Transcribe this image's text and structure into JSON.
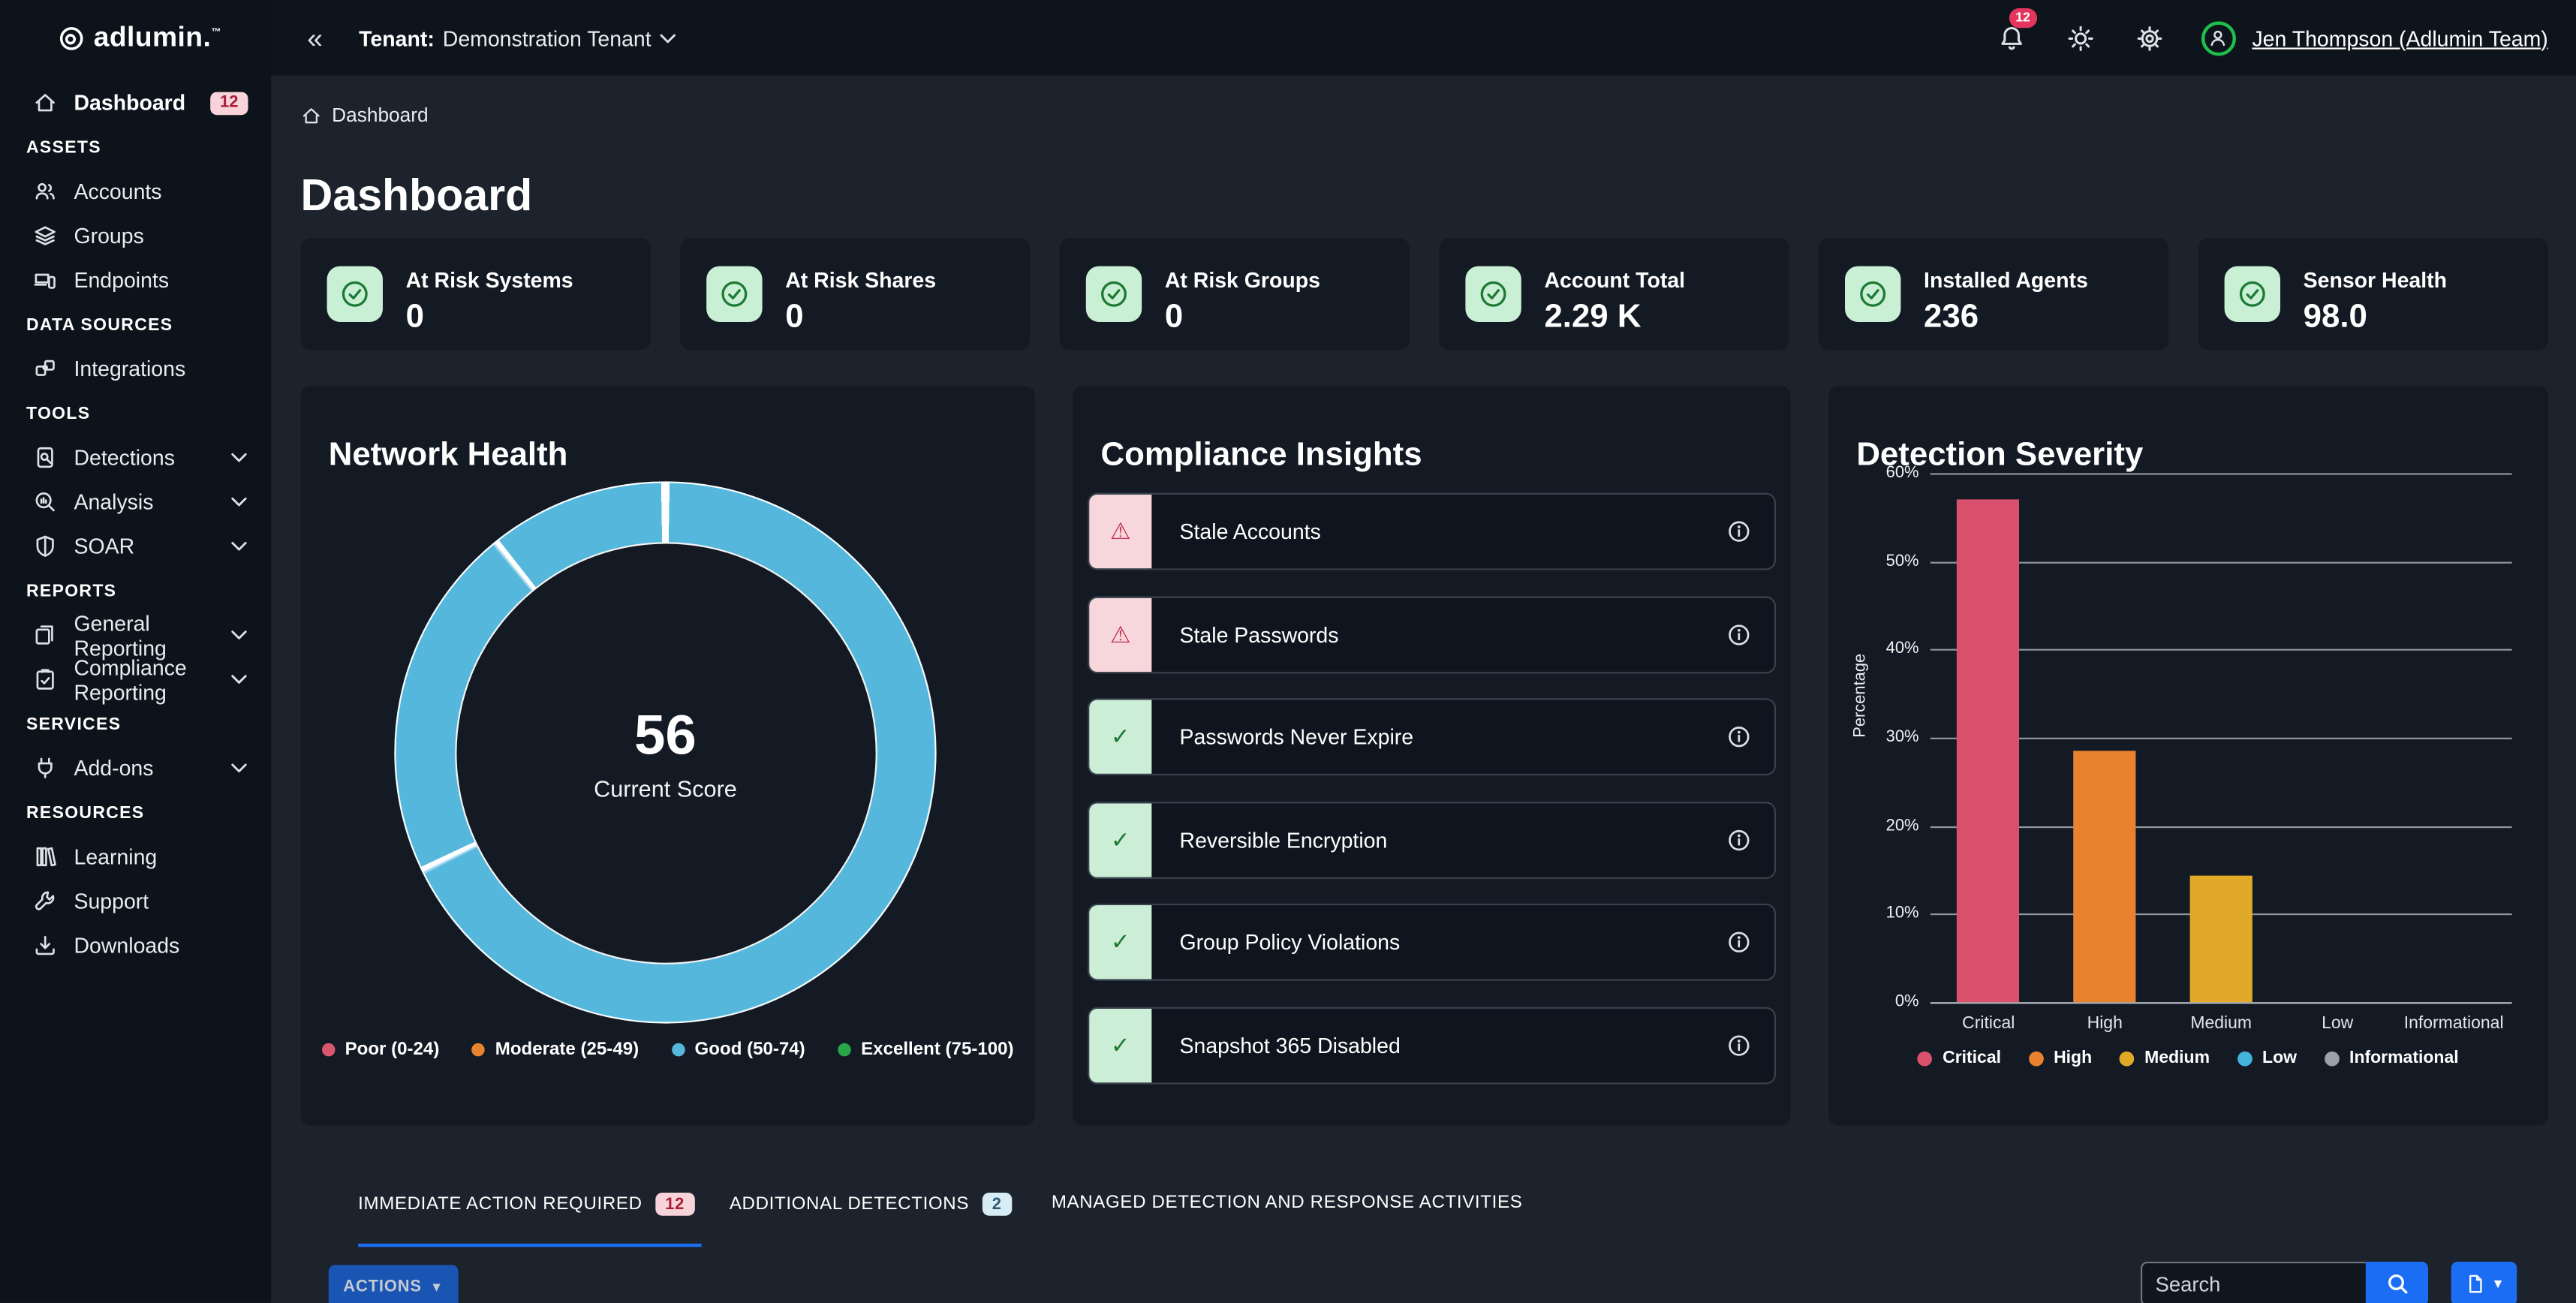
{
  "brand": {
    "name": "adlumin",
    "suffix": ".",
    "tm": "™"
  },
  "topbar": {
    "collapse_icon": "«",
    "tenant_label": "Tenant:",
    "tenant_name": "Demonstration Tenant",
    "notification_count": "12",
    "user_name": "Jen Thompson (Adlumin Team)"
  },
  "sidebar": {
    "dashboard": {
      "label": "Dashboard",
      "badge": "12"
    },
    "sections": [
      {
        "title": "ASSETS",
        "items": [
          {
            "label": "Accounts",
            "icon": "users-icon"
          },
          {
            "label": "Groups",
            "icon": "layers-icon"
          },
          {
            "label": "Endpoints",
            "icon": "devices-icon"
          }
        ]
      },
      {
        "title": "DATA SOURCES",
        "items": [
          {
            "label": "Integrations",
            "icon": "puzzle-icon"
          }
        ]
      },
      {
        "title": "TOOLS",
        "items": [
          {
            "label": "Detections",
            "icon": "file-search-icon",
            "expandable": true
          },
          {
            "label": "Analysis",
            "icon": "magnifier-chart-icon",
            "expandable": true
          },
          {
            "label": "SOAR",
            "icon": "shield-icon",
            "expandable": true
          }
        ]
      },
      {
        "title": "REPORTS",
        "items": [
          {
            "label": "General Reporting",
            "icon": "pages-icon",
            "expandable": true
          },
          {
            "label": "Compliance Reporting",
            "icon": "clipboard-check-icon",
            "expandable": true
          }
        ]
      },
      {
        "title": "SERVICES",
        "items": [
          {
            "label": "Add-ons",
            "icon": "plug-icon",
            "expandable": true
          }
        ]
      },
      {
        "title": "RESOURCES",
        "items": [
          {
            "label": "Learning",
            "icon": "books-icon"
          },
          {
            "label": "Support",
            "icon": "wrench-icon"
          },
          {
            "label": "Downloads",
            "icon": "download-icon"
          }
        ]
      }
    ]
  },
  "breadcrumb": {
    "label": "Dashboard"
  },
  "page_title": "Dashboard",
  "stat_cards": [
    {
      "title": "At Risk Systems",
      "value": "0"
    },
    {
      "title": "At Risk Shares",
      "value": "0"
    },
    {
      "title": "At Risk Groups",
      "value": "0"
    },
    {
      "title": "Account Total",
      "value": "2.29 K"
    },
    {
      "title": "Installed Agents",
      "value": "236"
    },
    {
      "title": "Sensor Health",
      "value": "98.0"
    }
  ],
  "network_health": {
    "title": "Network Health",
    "chart_data": {
      "type": "donut",
      "center_value": "56",
      "center_label": "Current Score",
      "score": 56,
      "ring_color": "#56b7dc",
      "segment_boundaries_deg": [
        0,
        244,
        321
      ],
      "segments": [
        {
          "label": "Good",
          "sweep_deg": 244,
          "color": "#56b7dc"
        },
        {
          "label": "Good",
          "sweep_deg": 77,
          "color": "#56b7dc"
        },
        {
          "label": "Good",
          "sweep_deg": 39,
          "color": "#56b7dc"
        }
      ],
      "legend": [
        {
          "label": "Poor (0-24)",
          "color": "#d9566f"
        },
        {
          "label": "Moderate (25-49)",
          "color": "#e8832e"
        },
        {
          "label": "Good (50-74)",
          "color": "#56b7dc"
        },
        {
          "label": "Excellent (75-100)",
          "color": "#2aa54a"
        }
      ]
    }
  },
  "compliance": {
    "title": "Compliance Insights",
    "items": [
      {
        "label": "Stale Accounts",
        "status": "warning",
        "glyph": "⚠",
        "icon": "warning-triangle-icon"
      },
      {
        "label": "Stale Passwords",
        "status": "warning",
        "glyph": "⚠",
        "icon": "warning-triangle-icon"
      },
      {
        "label": "Passwords Never Expire",
        "status": "ok",
        "glyph": "✓",
        "icon": "check-icon"
      },
      {
        "label": "Reversible Encryption",
        "status": "ok",
        "glyph": "✓",
        "icon": "check-icon"
      },
      {
        "label": "Group Policy Violations",
        "status": "ok",
        "glyph": "✓",
        "icon": "check-icon"
      },
      {
        "label": "Snapshot 365 Disabled",
        "status": "ok",
        "glyph": "✓",
        "icon": "check-icon"
      }
    ]
  },
  "detection_severity": {
    "title": "Detection Severity",
    "chart_data": {
      "type": "bar",
      "categories": [
        "Critical",
        "High",
        "Medium",
        "Low",
        "Informational"
      ],
      "values": [
        57,
        28.5,
        14.3,
        0,
        0
      ],
      "unit": "%",
      "colors": [
        "#d8506b",
        "#e8822e",
        "#e0a928",
        "#45b4dd",
        "#9aa1ab"
      ],
      "ylabel": "Percentage",
      "ylim": [
        0,
        60
      ],
      "yticks": [
        "0%",
        "10%",
        "20%",
        "30%",
        "40%",
        "50%",
        "60%"
      ],
      "grid": true,
      "legend_position": "bottom",
      "legend": [
        {
          "label": "Critical",
          "color": "#d8506b"
        },
        {
          "label": "High",
          "color": "#e8822e"
        },
        {
          "label": "Medium",
          "color": "#e0a928"
        },
        {
          "label": "Low",
          "color": "#45b4dd"
        },
        {
          "label": "Informational",
          "color": "#9aa1ab"
        }
      ]
    }
  },
  "tabs": [
    {
      "label": "IMMEDIATE ACTION REQUIRED",
      "badge": "12",
      "active": true
    },
    {
      "label": "ADDITIONAL DETECTIONS",
      "badge": "2",
      "active": false
    },
    {
      "label": "MANAGED DETECTION AND RESPONSE ACTIVITIES",
      "active": false
    }
  ],
  "actions_button": {
    "label": "ACTIONS"
  },
  "search": {
    "placeholder": "Search"
  }
}
